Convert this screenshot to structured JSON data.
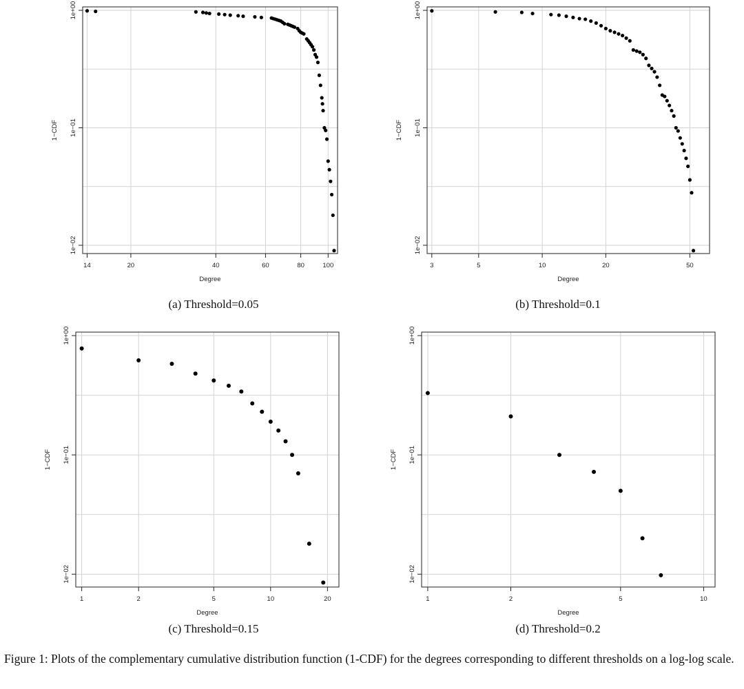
{
  "chart_data": [
    {
      "type": "scatter",
      "caption": "(a) Threshold=0.05",
      "xlabel": "Degree",
      "ylabel": "1−CDF",
      "log_x": true,
      "log_y": true,
      "grid": true,
      "xlim": [
        13.5,
        108
      ],
      "ylim": [
        0.0085,
        1.07
      ],
      "x_ticks": [
        14,
        20,
        40,
        60,
        80,
        100
      ],
      "x_tick_labels": [
        "14",
        "20",
        "40",
        "60",
        "80",
        "100"
      ],
      "y_ticks": [
        1,
        0.1,
        0.01
      ],
      "y_tick_labels": [
        "1e+00",
        "1e−01",
        "1e−02"
      ],
      "points": [
        [
          14,
          0.99
        ],
        [
          15,
          0.98
        ],
        [
          34,
          0.97
        ],
        [
          36,
          0.96
        ],
        [
          37,
          0.95
        ],
        [
          38,
          0.94
        ],
        [
          41,
          0.93
        ],
        [
          43,
          0.92
        ],
        [
          45,
          0.91
        ],
        [
          48,
          0.9
        ],
        [
          50,
          0.89
        ],
        [
          55,
          0.88
        ],
        [
          58,
          0.87
        ],
        [
          63,
          0.86
        ],
        [
          64,
          0.85
        ],
        [
          65,
          0.84
        ],
        [
          66,
          0.83
        ],
        [
          67,
          0.82
        ],
        [
          68,
          0.81
        ],
        [
          69,
          0.79
        ],
        [
          70,
          0.77
        ],
        [
          72,
          0.76
        ],
        [
          73,
          0.75
        ],
        [
          74,
          0.74
        ],
        [
          75,
          0.73
        ],
        [
          76,
          0.72
        ],
        [
          78,
          0.7
        ],
        [
          79,
          0.67
        ],
        [
          80,
          0.65
        ],
        [
          81,
          0.64
        ],
        [
          82,
          0.63
        ],
        [
          84,
          0.57
        ],
        [
          85,
          0.55
        ],
        [
          86,
          0.53
        ],
        [
          87,
          0.51
        ],
        [
          88,
          0.49
        ],
        [
          89,
          0.46
        ],
        [
          90,
          0.42
        ],
        [
          91,
          0.4
        ],
        [
          92,
          0.36
        ],
        [
          93,
          0.28
        ],
        [
          94,
          0.23
        ],
        [
          95,
          0.18
        ],
        [
          95.5,
          0.16
        ],
        [
          96,
          0.14
        ],
        [
          97,
          0.1
        ],
        [
          98,
          0.095
        ],
        [
          99,
          0.08
        ],
        [
          100,
          0.052
        ],
        [
          101,
          0.044
        ],
        [
          102,
          0.035
        ],
        [
          103,
          0.027
        ],
        [
          104,
          0.018
        ],
        [
          105,
          0.009
        ]
      ]
    },
    {
      "type": "scatter",
      "caption": "(b) Threshold=0.1",
      "xlabel": "Degree",
      "ylabel": "1−CDF",
      "log_x": true,
      "log_y": true,
      "grid": true,
      "xlim": [
        2.85,
        62
      ],
      "ylim": [
        0.0085,
        1.07
      ],
      "x_ticks": [
        3,
        5,
        10,
        20,
        50
      ],
      "x_tick_labels": [
        "3",
        "5",
        "10",
        "20",
        "50"
      ],
      "y_ticks": [
        1,
        0.1,
        0.01
      ],
      "y_tick_labels": [
        "1e+00",
        "1e−01",
        "1e−02"
      ],
      "points": [
        [
          3,
          0.99
        ],
        [
          6,
          0.97
        ],
        [
          8,
          0.96
        ],
        [
          9,
          0.94
        ],
        [
          11,
          0.92
        ],
        [
          12,
          0.91
        ],
        [
          13,
          0.89
        ],
        [
          14,
          0.87
        ],
        [
          15,
          0.85
        ],
        [
          16,
          0.84
        ],
        [
          17,
          0.81
        ],
        [
          18,
          0.78
        ],
        [
          19,
          0.74
        ],
        [
          20,
          0.7
        ],
        [
          21,
          0.67
        ],
        [
          22,
          0.65
        ],
        [
          23,
          0.63
        ],
        [
          24,
          0.61
        ],
        [
          25,
          0.58
        ],
        [
          26,
          0.55
        ],
        [
          27,
          0.46
        ],
        [
          28,
          0.45
        ],
        [
          29,
          0.44
        ],
        [
          30,
          0.42
        ],
        [
          31,
          0.39
        ],
        [
          32,
          0.34
        ],
        [
          33,
          0.32
        ],
        [
          34,
          0.3
        ],
        [
          35,
          0.27
        ],
        [
          36,
          0.23
        ],
        [
          37,
          0.19
        ],
        [
          38,
          0.185
        ],
        [
          39,
          0.17
        ],
        [
          40,
          0.155
        ],
        [
          41,
          0.14
        ],
        [
          42,
          0.126
        ],
        [
          43,
          0.1
        ],
        [
          44,
          0.094
        ],
        [
          45,
          0.082
        ],
        [
          46,
          0.073
        ],
        [
          47,
          0.064
        ],
        [
          48,
          0.055
        ],
        [
          49,
          0.047
        ],
        [
          50,
          0.036
        ],
        [
          51,
          0.028
        ],
        [
          52,
          0.009
        ]
      ]
    },
    {
      "type": "scatter",
      "caption": "(c) Threshold=0.15",
      "xlabel": "Degree",
      "ylabel": "1−CDF",
      "log_x": true,
      "log_y": true,
      "grid": true,
      "xlim": [
        0.93,
        23
      ],
      "ylim": [
        0.0078,
        1.07
      ],
      "x_ticks": [
        1,
        2,
        5,
        10,
        20
      ],
      "x_tick_labels": [
        "1",
        "2",
        "5",
        "10",
        "20"
      ],
      "y_ticks": [
        1,
        0.1,
        0.01
      ],
      "y_tick_labels": [
        "1e+00",
        "1e−01",
        "1e−02"
      ],
      "points": [
        [
          1,
          0.78
        ],
        [
          2,
          0.62
        ],
        [
          3,
          0.58
        ],
        [
          4,
          0.48
        ],
        [
          5,
          0.42
        ],
        [
          6,
          0.38
        ],
        [
          7,
          0.34
        ],
        [
          8,
          0.27
        ],
        [
          9,
          0.23
        ],
        [
          10,
          0.19
        ],
        [
          11,
          0.16
        ],
        [
          12,
          0.13
        ],
        [
          13,
          0.1
        ],
        [
          14,
          0.07
        ],
        [
          16,
          0.018
        ],
        [
          19,
          0.0085
        ]
      ]
    },
    {
      "type": "scatter",
      "caption": "(d) Threshold=0.2",
      "xlabel": "Degree",
      "ylabel": "1−CDF",
      "log_x": true,
      "log_y": true,
      "grid": true,
      "xlim": [
        0.95,
        11
      ],
      "ylim": [
        0.0078,
        1.07
      ],
      "x_ticks": [
        1,
        2,
        5,
        10
      ],
      "x_tick_labels": [
        "1",
        "2",
        "5",
        "10"
      ],
      "y_ticks": [
        1,
        0.1,
        0.01
      ],
      "y_tick_labels": [
        "1e+00",
        "1e−01",
        "1e−02"
      ],
      "points": [
        [
          1,
          0.33
        ],
        [
          2,
          0.21
        ],
        [
          3,
          0.1
        ],
        [
          4,
          0.072
        ],
        [
          5,
          0.05
        ],
        [
          6,
          0.02
        ],
        [
          7,
          0.0098
        ]
      ]
    }
  ],
  "figure_caption": "Figure 1: Plots of the complementary cumulative distribution function (1-CDF) for the degrees corresponding to different thresholds on a log-log scale."
}
